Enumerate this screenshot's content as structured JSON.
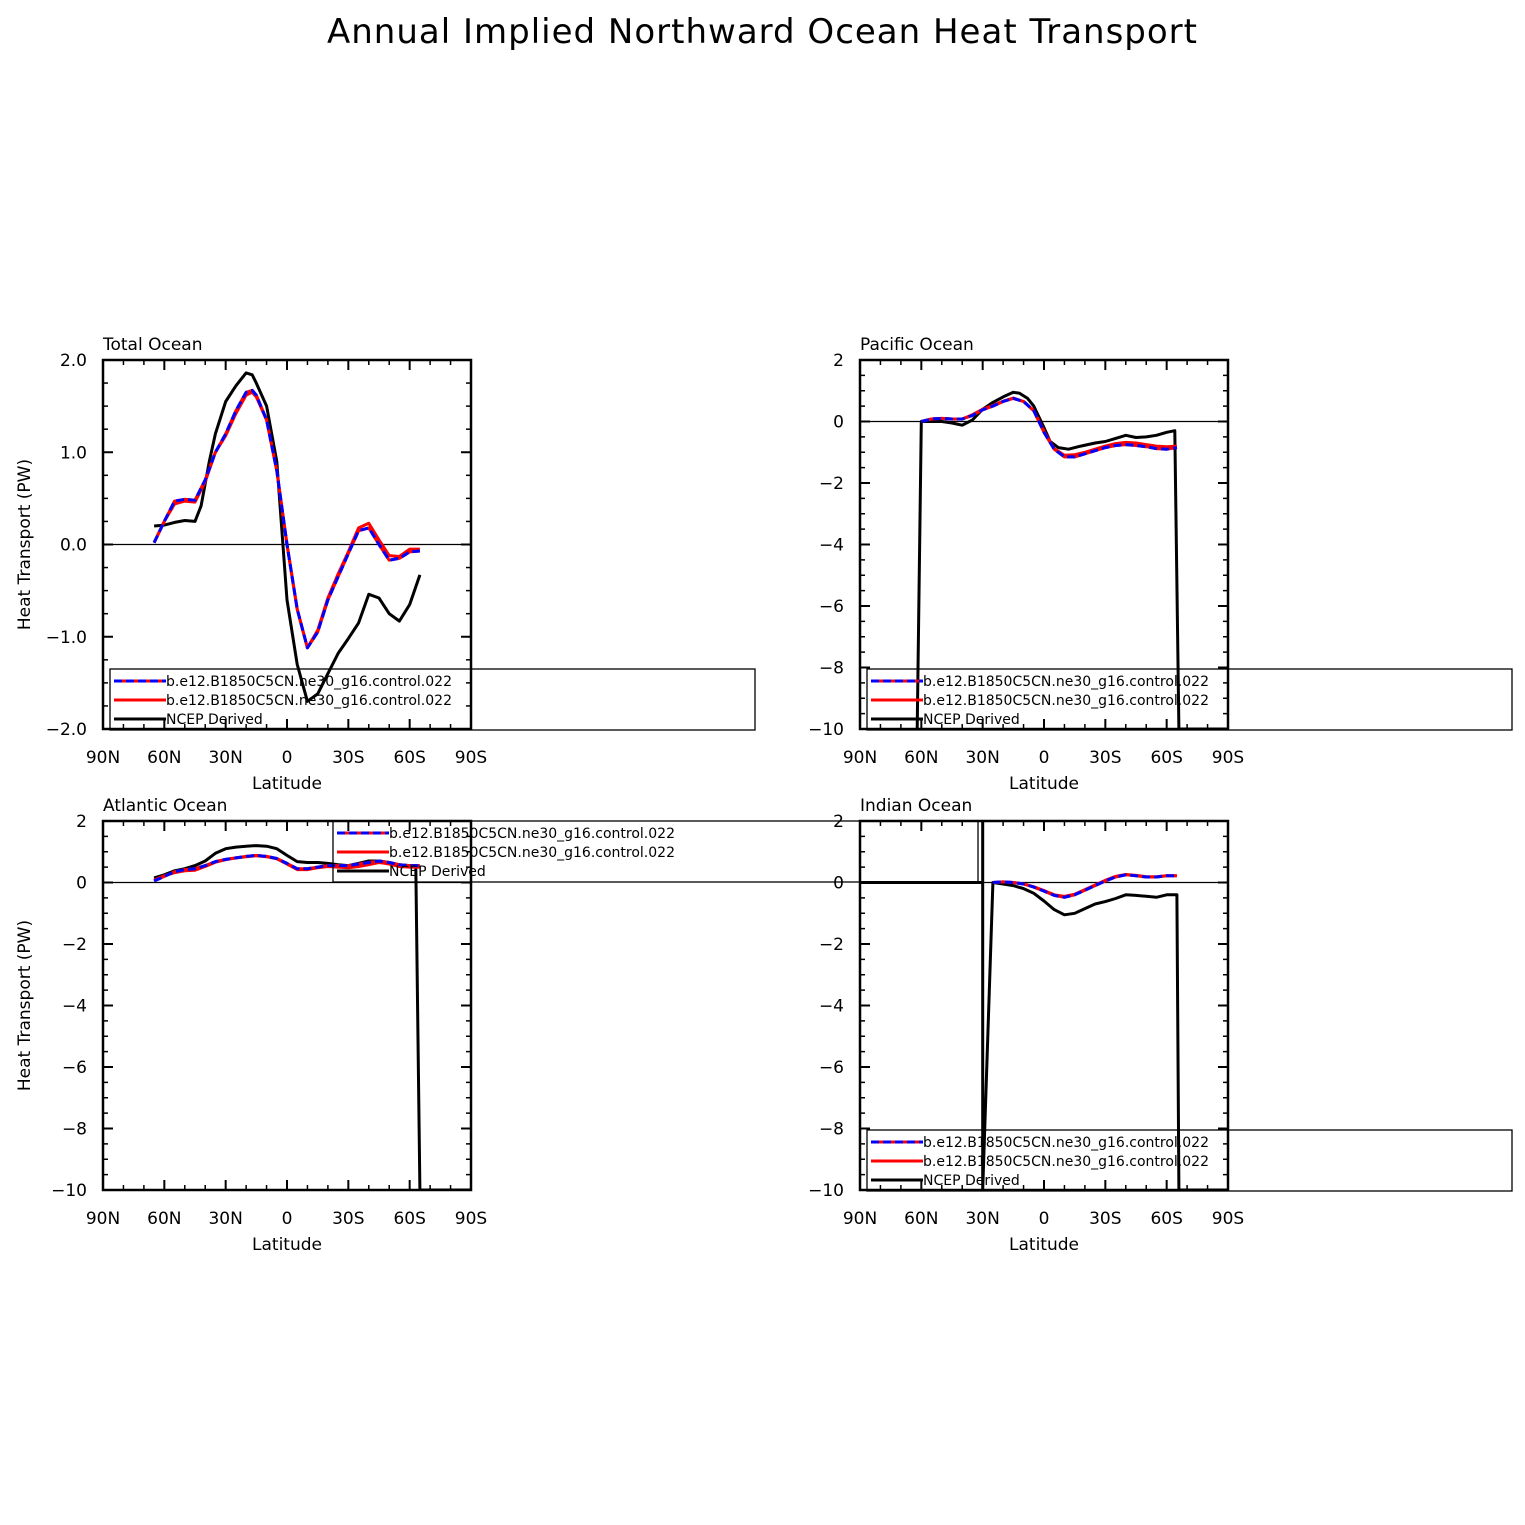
{
  "figure_title": "Annual Implied Northward Ocean Heat Transport",
  "colors": {
    "model_dashed": "#0000ff",
    "model_solid": "#ff0000",
    "obs": "#000000",
    "dash_overlay": "#ff0000"
  },
  "chart_data": [
    {
      "type": "line",
      "panel": "Total Ocean",
      "title": "Total Ocean",
      "xlabel": "Latitude",
      "ylabel": "Heat Transport (PW)",
      "xlim": [
        90,
        -90
      ],
      "ylim": [
        -2,
        2
      ],
      "x_ticks": [
        90,
        60,
        30,
        0,
        -30,
        -60,
        -90
      ],
      "x_tick_labels": [
        "90N",
        "60N",
        "30N",
        "0",
        "30S",
        "60S",
        "90S"
      ],
      "y_ticks": [
        -2,
        -1,
        0,
        1,
        2
      ],
      "y_tick_labels": [
        "−2.0",
        "−1.0",
        "0.0",
        "1.0",
        "2.0"
      ],
      "legend_position": "bottom-left, extending right",
      "series": [
        {
          "name": "b.e12.B1850C5CN.ne30_g16.control.022",
          "style": "dashed",
          "color": "#0000ff",
          "overlay": "#ff0000",
          "x": [
            65,
            60,
            55,
            50,
            45,
            40,
            35,
            30,
            25,
            20,
            17,
            15,
            10,
            5,
            0,
            -5,
            -10,
            -15,
            -20,
            -25,
            -30,
            -35,
            -40,
            -45,
            -50,
            -55,
            -60,
            -65
          ],
          "y": [
            0.02,
            0.25,
            0.47,
            0.49,
            0.48,
            0.7,
            1.0,
            1.2,
            1.45,
            1.65,
            1.67,
            1.62,
            1.35,
            0.8,
            0.0,
            -0.7,
            -1.12,
            -0.95,
            -0.6,
            -0.35,
            -0.1,
            0.15,
            0.18,
            0.0,
            -0.17,
            -0.15,
            -0.08,
            -0.07
          ]
        },
        {
          "name": "b.e12.B1850C5CN.ne30_g16.control.022",
          "style": "solid",
          "color": "#ff0000",
          "x": [
            65,
            60,
            55,
            50,
            45,
            40,
            35,
            30,
            25,
            20,
            17,
            15,
            10,
            5,
            0,
            -5,
            -10,
            -15,
            -20,
            -25,
            -30,
            -35,
            -40,
            -45,
            -50,
            -55,
            -60,
            -65
          ],
          "y": [
            0.02,
            0.25,
            0.44,
            0.47,
            0.46,
            0.68,
            1.0,
            1.18,
            1.42,
            1.62,
            1.65,
            1.6,
            1.35,
            0.8,
            0.0,
            -0.7,
            -1.12,
            -0.93,
            -0.58,
            -0.32,
            -0.08,
            0.18,
            0.23,
            0.05,
            -0.12,
            -0.13,
            -0.05,
            -0.05
          ]
        },
        {
          "name": "NCEP Derived",
          "style": "solid",
          "color": "#000000",
          "x": [
            65,
            60,
            55,
            50,
            45,
            42,
            38,
            35,
            30,
            25,
            20,
            17,
            15,
            10,
            5,
            0,
            -5,
            -10,
            -15,
            -20,
            -25,
            -30,
            -35,
            -40,
            -45,
            -50,
            -55,
            -60,
            -65
          ],
          "y": [
            0.2,
            0.21,
            0.24,
            0.26,
            0.25,
            0.42,
            0.9,
            1.2,
            1.55,
            1.72,
            1.86,
            1.84,
            1.75,
            1.5,
            0.9,
            -0.6,
            -1.3,
            -1.7,
            -1.62,
            -1.4,
            -1.18,
            -1.02,
            -0.85,
            -0.54,
            -0.58,
            -0.75,
            -0.83,
            -0.65,
            -0.33
          ]
        }
      ]
    },
    {
      "type": "line",
      "panel": "Pacific Ocean",
      "title": "Pacific Ocean",
      "xlabel": "Latitude",
      "ylabel": "",
      "xlim": [
        90,
        -90
      ],
      "ylim": [
        -10,
        2
      ],
      "x_ticks": [
        90,
        60,
        30,
        0,
        -30,
        -60,
        -90
      ],
      "x_tick_labels": [
        "90N",
        "60N",
        "30N",
        "0",
        "30S",
        "60S",
        "90S"
      ],
      "y_ticks": [
        -10,
        -8,
        -6,
        -4,
        -2,
        0,
        2
      ],
      "y_tick_labels": [
        "−10",
        "−8",
        "−6",
        "−4",
        "−2",
        "0",
        "2"
      ],
      "legend_position": "bottom-left, extending right",
      "series": [
        {
          "name": "b.e12.B1850C5CN.ne30_g16.control.022",
          "style": "dashed",
          "color": "#0000ff",
          "overlay": "#ff0000",
          "x": [
            60,
            55,
            50,
            45,
            40,
            35,
            30,
            25,
            20,
            15,
            10,
            5,
            0,
            -5,
            -10,
            -15,
            -20,
            -25,
            -30,
            -35,
            -40,
            -45,
            -50,
            -55,
            -60,
            -65
          ],
          "y": [
            0.0,
            0.08,
            0.1,
            0.08,
            0.08,
            0.2,
            0.38,
            0.5,
            0.65,
            0.75,
            0.65,
            0.35,
            -0.35,
            -0.9,
            -1.15,
            -1.15,
            -1.05,
            -0.95,
            -0.85,
            -0.78,
            -0.75,
            -0.78,
            -0.82,
            -0.88,
            -0.9,
            -0.85
          ]
        },
        {
          "name": "b.e12.B1850C5CN.ne30_g16.control.022",
          "style": "solid",
          "color": "#ff0000",
          "x": [
            60,
            55,
            50,
            45,
            40,
            35,
            30,
            25,
            20,
            15,
            10,
            5,
            0,
            -5,
            -10,
            -15,
            -20,
            -25,
            -30,
            -35,
            -40,
            -45,
            -50,
            -55,
            -60,
            -65
          ],
          "y": [
            0.0,
            0.08,
            0.1,
            0.08,
            0.08,
            0.22,
            0.4,
            0.52,
            0.66,
            0.76,
            0.65,
            0.35,
            -0.32,
            -0.88,
            -1.1,
            -1.08,
            -1.0,
            -0.9,
            -0.8,
            -0.72,
            -0.68,
            -0.7,
            -0.75,
            -0.8,
            -0.82,
            -0.8
          ]
        },
        {
          "name": "NCEP Derived",
          "style": "solid",
          "color": "#000000",
          "x": [
            62,
            60,
            55,
            50,
            45,
            40,
            35,
            30,
            25,
            20,
            15,
            12,
            8,
            5,
            0,
            -3,
            -7,
            -12,
            -18,
            -25,
            -30,
            -35,
            -40,
            -45,
            -50,
            -55,
            -60,
            -64,
            -66,
            -90
          ],
          "y": [
            -10,
            0.0,
            0.0,
            0.0,
            -0.05,
            -0.12,
            0.05,
            0.4,
            0.62,
            0.8,
            0.95,
            0.92,
            0.75,
            0.5,
            -0.2,
            -0.65,
            -0.85,
            -0.9,
            -0.8,
            -0.7,
            -0.65,
            -0.55,
            -0.45,
            -0.52,
            -0.5,
            -0.45,
            -0.35,
            -0.3,
            -10,
            -10
          ]
        }
      ]
    },
    {
      "type": "line",
      "panel": "Atlantic Ocean",
      "title": "Atlantic Ocean",
      "xlabel": "Latitude",
      "ylabel": "Heat Transport (PW)",
      "xlim": [
        90,
        -90
      ],
      "ylim": [
        -10,
        2
      ],
      "x_ticks": [
        90,
        60,
        30,
        0,
        -30,
        -60,
        -90
      ],
      "x_tick_labels": [
        "90N",
        "60N",
        "30N",
        "0",
        "30S",
        "60S",
        "90S"
      ],
      "y_ticks": [
        -10,
        -8,
        -6,
        -4,
        -2,
        0,
        2
      ],
      "y_tick_labels": [
        "−10",
        "−8",
        "−6",
        "−4",
        "−2",
        "0",
        "2"
      ],
      "legend_position": "top-center, extending right",
      "series": [
        {
          "name": "b.e12.B1850C5CN.ne30_g16.control.022",
          "style": "dashed",
          "color": "#0000ff",
          "overlay": "#ff0000",
          "x": [
            65,
            60,
            55,
            50,
            45,
            40,
            35,
            30,
            25,
            20,
            15,
            10,
            5,
            0,
            -5,
            -10,
            -15,
            -20,
            -25,
            -30,
            -35,
            -40,
            -45,
            -50,
            -55,
            -60,
            -65
          ],
          "y": [
            0.05,
            0.2,
            0.35,
            0.42,
            0.45,
            0.55,
            0.68,
            0.75,
            0.8,
            0.85,
            0.88,
            0.85,
            0.78,
            0.62,
            0.45,
            0.45,
            0.5,
            0.55,
            0.55,
            0.55,
            0.6,
            0.65,
            0.7,
            0.65,
            0.58,
            0.55,
            0.55
          ]
        },
        {
          "name": "b.e12.B1850C5CN.ne30_g16.control.022",
          "style": "solid",
          "color": "#ff0000",
          "x": [
            65,
            60,
            55,
            50,
            45,
            40,
            35,
            30,
            25,
            20,
            15,
            10,
            5,
            0,
            -5,
            -10,
            -15,
            -20,
            -25,
            -30,
            -35,
            -40,
            -45,
            -50,
            -55,
            -60,
            -65
          ],
          "y": [
            0.08,
            0.22,
            0.32,
            0.38,
            0.4,
            0.52,
            0.66,
            0.74,
            0.8,
            0.84,
            0.87,
            0.84,
            0.77,
            0.6,
            0.42,
            0.42,
            0.48,
            0.52,
            0.5,
            0.48,
            0.52,
            0.58,
            0.65,
            0.6,
            0.52,
            0.5,
            0.5
          ]
        },
        {
          "name": "NCEP Derived",
          "style": "solid",
          "color": "#000000",
          "x": [
            65,
            60,
            55,
            50,
            45,
            40,
            35,
            30,
            25,
            20,
            15,
            10,
            5,
            0,
            -5,
            -10,
            -15,
            -20,
            -25,
            -30,
            -35,
            -40,
            -45,
            -50,
            -55,
            -60,
            -63,
            -65,
            -90
          ],
          "y": [
            0.15,
            0.25,
            0.38,
            0.45,
            0.55,
            0.7,
            0.95,
            1.1,
            1.15,
            1.18,
            1.2,
            1.18,
            1.1,
            0.88,
            0.68,
            0.65,
            0.65,
            0.62,
            0.58,
            0.55,
            0.62,
            0.7,
            0.7,
            0.65,
            0.58,
            0.55,
            0.55,
            -10,
            -10
          ]
        }
      ]
    },
    {
      "type": "line",
      "panel": "Indian Ocean",
      "title": "Indian Ocean",
      "xlabel": "Latitude",
      "ylabel": "",
      "xlim": [
        90,
        -90
      ],
      "ylim": [
        -10,
        2
      ],
      "x_ticks": [
        90,
        60,
        30,
        0,
        -30,
        -60,
        -90
      ],
      "x_tick_labels": [
        "90N",
        "60N",
        "30N",
        "0",
        "30S",
        "60S",
        "90S"
      ],
      "y_ticks": [
        -10,
        -8,
        -6,
        -4,
        -2,
        0,
        2
      ],
      "y_tick_labels": [
        "−10",
        "−8",
        "−6",
        "−4",
        "−2",
        "0",
        "2"
      ],
      "legend_position": "bottom-left, extending right",
      "series": [
        {
          "name": "b.e12.B1850C5CN.ne30_g16.control.022",
          "style": "dashed",
          "color": "#0000ff",
          "overlay": "#ff0000",
          "x": [
            25,
            20,
            15,
            10,
            5,
            0,
            -5,
            -10,
            -15,
            -20,
            -25,
            -30,
            -35,
            -40,
            -45,
            -50,
            -55,
            -60,
            -65
          ],
          "y": [
            0.0,
            0.02,
            0.0,
            -0.05,
            -0.15,
            -0.28,
            -0.42,
            -0.48,
            -0.4,
            -0.25,
            -0.1,
            0.05,
            0.18,
            0.25,
            0.22,
            0.18,
            0.18,
            0.22,
            0.22
          ]
        },
        {
          "name": "b.e12.B1850C5CN.ne30_g16.control.022",
          "style": "solid",
          "color": "#ff0000",
          "x": [
            25,
            20,
            15,
            10,
            5,
            0,
            -5,
            -10,
            -15,
            -20,
            -25,
            -30,
            -35,
            -40,
            -45,
            -50,
            -55,
            -60,
            -65
          ],
          "y": [
            0.0,
            0.02,
            0.0,
            -0.05,
            -0.14,
            -0.26,
            -0.4,
            -0.45,
            -0.38,
            -0.23,
            -0.08,
            0.07,
            0.2,
            0.26,
            0.23,
            0.19,
            0.19,
            0.22,
            0.22
          ]
        },
        {
          "name": "NCEP Derived",
          "style": "solid",
          "color": "#000000",
          "x": [
            90,
            30,
            30,
            30,
            25,
            20,
            15,
            10,
            5,
            0,
            -5,
            -10,
            -15,
            -20,
            -25,
            -30,
            -35,
            -40,
            -45,
            -50,
            -55,
            -60,
            -65,
            -66,
            -90
          ],
          "y": [
            0.0,
            0.0,
            2.0,
            -10,
            0.0,
            -0.05,
            -0.1,
            -0.2,
            -0.35,
            -0.6,
            -0.88,
            -1.05,
            -1.0,
            -0.85,
            -0.7,
            -0.62,
            -0.52,
            -0.4,
            -0.42,
            -0.45,
            -0.48,
            -0.4,
            -0.4,
            -10,
            -10
          ]
        }
      ]
    }
  ]
}
